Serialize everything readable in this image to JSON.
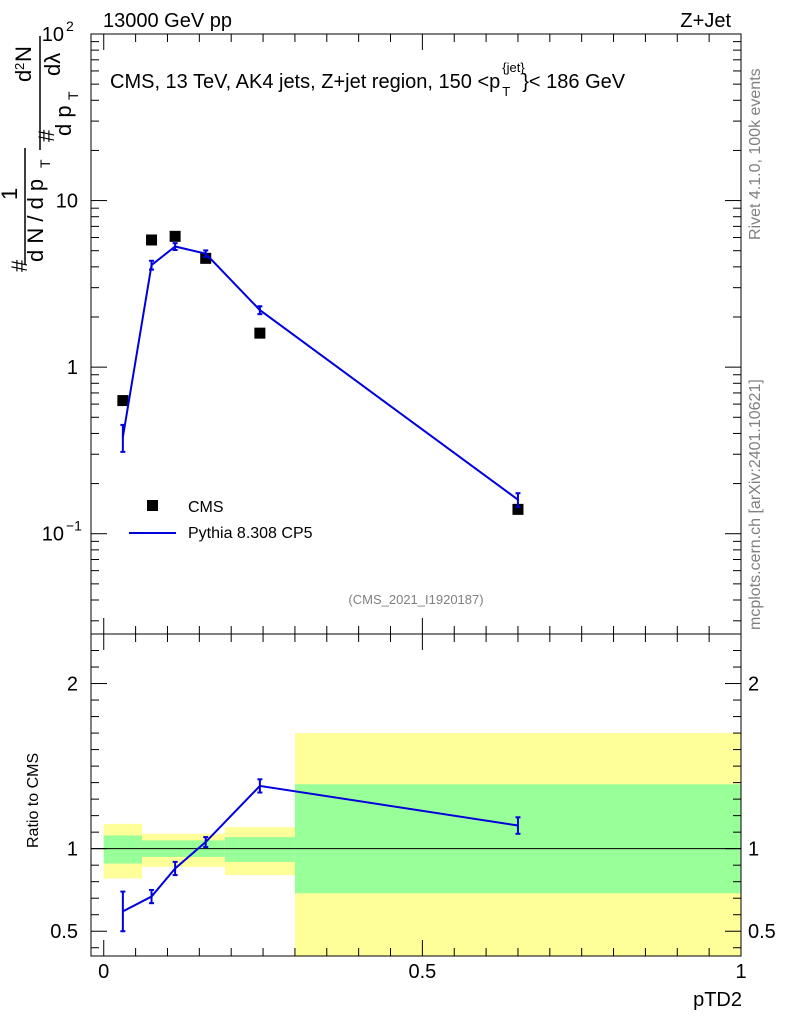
{
  "header": {
    "energy_label": "13000 GeV pp",
    "process_label": "Z+Jet"
  },
  "side": {
    "rivet_label": "Rivet 4.1.0,  100k events",
    "mcplots_label": "mcplots.cern.ch [arXiv:2401.10621]"
  },
  "analysis_label": "(CMS_2021_I1920187)",
  "main_ylabel": {
    "hash": "#",
    "one": "1",
    "den_pre": "d N / d p",
    "den_sub": "T",
    "hash2": "#",
    "dp_num": "d p",
    "dp_sub": "T",
    "d2n": "d",
    "d2n_sup": "2",
    "d2n_rest": "N",
    "dlambda": "dλ"
  },
  "chart_data": [
    {
      "type": "line",
      "panel": "main",
      "title": "CMS, 13 TeV, AK4 jets, Z+jet region, 150 <p",
      "title_sup": "{jet}",
      "title_sub": "T",
      "title_end": "}< 186 GeV",
      "xlabel": "pTD2",
      "yscale": "log",
      "ylim": [
        0.025,
        100
      ],
      "xlim": [
        -0.02,
        1.0
      ],
      "y_ticks": [
        {
          "value": 0.1,
          "base": "10",
          "exp": "−1"
        },
        {
          "value": 1,
          "base": "1",
          "exp": ""
        },
        {
          "value": 10,
          "base": "10",
          "exp": ""
        },
        {
          "value": 100,
          "base": "10",
          "exp": "2"
        }
      ],
      "series": [
        {
          "name": "CMS",
          "style": "markers",
          "color": "#000000",
          "x": [
            0.03,
            0.075,
            0.112,
            0.16,
            0.245,
            0.65
          ],
          "y": [
            0.63,
            5.8,
            6.1,
            4.5,
            1.6,
            0.14
          ]
        },
        {
          "name": "Pythia 8.308 CP5",
          "style": "line",
          "color": "#0000dd",
          "x": [
            0.03,
            0.075,
            0.112,
            0.16,
            0.245,
            0.65
          ],
          "y": [
            0.38,
            4.1,
            5.3,
            4.8,
            2.2,
            0.16
          ],
          "err": [
            0.07,
            0.25,
            0.25,
            0.22,
            0.12,
            0.015
          ]
        }
      ],
      "legend": [
        "CMS",
        "Pythia 8.308 CP5"
      ],
      "legend_position": "bottom-left"
    },
    {
      "type": "line",
      "panel": "ratio",
      "ylabel": "Ratio to CMS",
      "xlabel": "pTD2",
      "ylim": [
        0.35,
        2.3
      ],
      "xlim": [
        -0.02,
        1.0
      ],
      "y_ticks": [
        {
          "value": 0.5,
          "label": "0.5"
        },
        {
          "value": 1,
          "label": "1"
        },
        {
          "value": 2,
          "label": "2"
        }
      ],
      "x_ticks": [
        {
          "value": 0,
          "label": "0"
        },
        {
          "value": 0.5,
          "label": "0.5"
        },
        {
          "value": 1,
          "label": "1"
        }
      ],
      "bands": [
        {
          "x0": 0.0,
          "x1": 0.06,
          "yellow": [
            0.82,
            1.15
          ],
          "green": [
            0.91,
            1.08
          ]
        },
        {
          "x0": 0.06,
          "x1": 0.19,
          "yellow": [
            0.89,
            1.09
          ],
          "green": [
            0.95,
            1.05
          ]
        },
        {
          "x0": 0.19,
          "x1": 0.3,
          "yellow": [
            0.84,
            1.13
          ],
          "green": [
            0.92,
            1.07
          ]
        },
        {
          "x0": 0.3,
          "x1": 1.0,
          "yellow": [
            0.35,
            1.7
          ],
          "green": [
            0.73,
            1.39
          ]
        }
      ],
      "series": [
        {
          "name": "Pythia 8.308 CP5 / CMS",
          "color": "#0000dd",
          "x": [
            0.03,
            0.075,
            0.112,
            0.16,
            0.245,
            0.65
          ],
          "y": [
            0.62,
            0.71,
            0.88,
            1.04,
            1.38,
            1.14
          ],
          "err": [
            0.12,
            0.04,
            0.04,
            0.03,
            0.04,
            0.05
          ]
        }
      ]
    }
  ]
}
